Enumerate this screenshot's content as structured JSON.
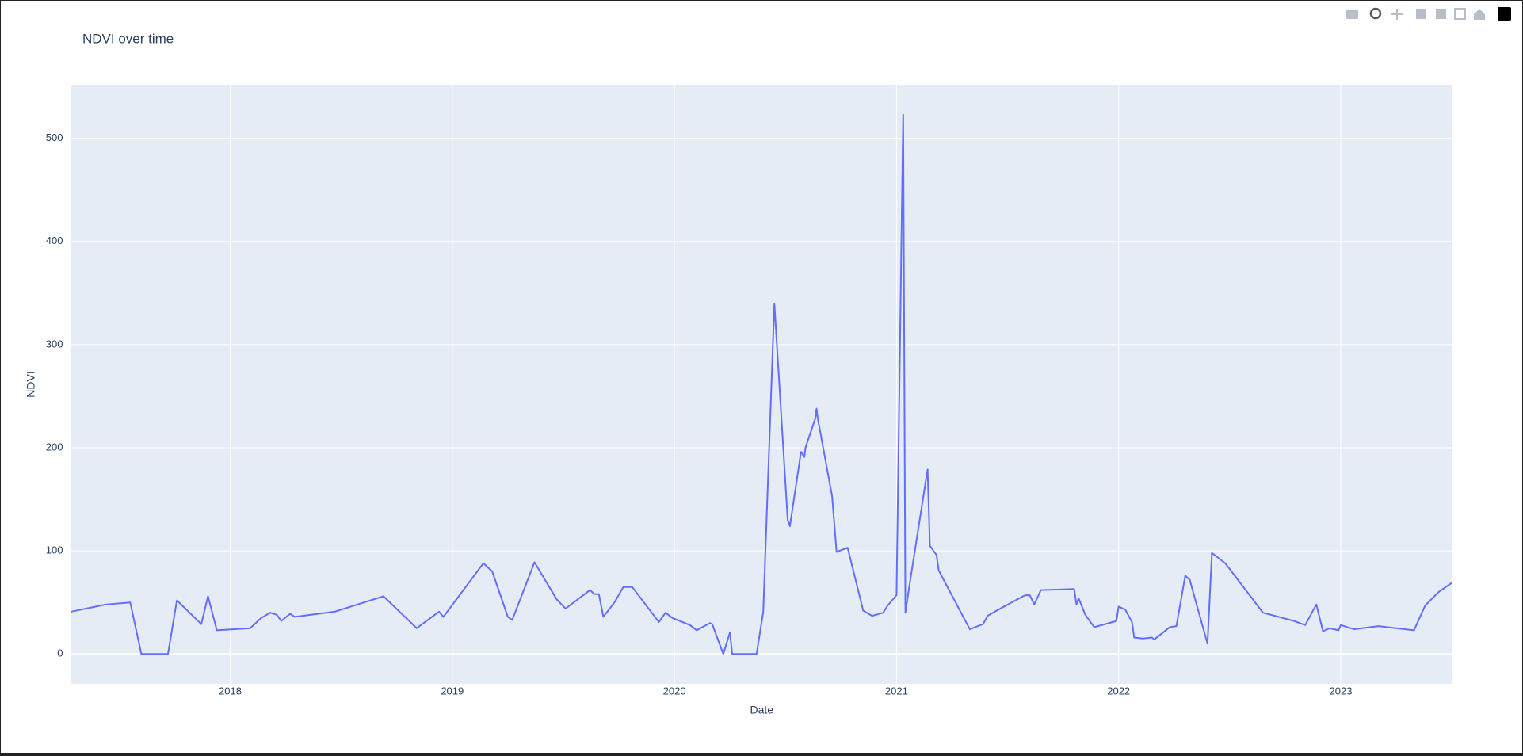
{
  "chart_data": {
    "type": "line",
    "title": "NDVI over time",
    "x_label": "Date",
    "y_label": "NDVI",
    "x": [
      2017.283,
      2017.44,
      2017.55,
      2017.6,
      2017.72,
      2017.76,
      2017.87,
      2017.9,
      2017.94,
      2018.09,
      2018.14,
      2018.18,
      2018.21,
      2018.23,
      2018.27,
      2018.29,
      2018.47,
      2018.69,
      2018.84,
      2018.94,
      2018.96,
      2019.14,
      2019.18,
      2019.25,
      2019.27,
      2019.37,
      2019.47,
      2019.51,
      2019.62,
      2019.64,
      2019.66,
      2019.68,
      2019.73,
      2019.77,
      2019.81,
      2019.93,
      2019.96,
      2019.99,
      2020.07,
      2020.1,
      2020.16,
      2020.17,
      2020.22,
      2020.25,
      2020.26,
      2020.37,
      2020.4,
      2020.45,
      2020.51,
      2020.52,
      2020.57,
      2020.585,
      2020.59,
      2020.635,
      2020.64,
      2020.645,
      2020.71,
      2020.73,
      2020.78,
      2020.85,
      2020.89,
      2020.94,
      2020.96,
      2021.0,
      2021.03,
      2021.04,
      2021.06,
      2021.14,
      2021.15,
      2021.18,
      2021.19,
      2021.33,
      2021.39,
      2021.41,
      2021.45,
      2021.57,
      2021.58,
      2021.6,
      2021.62,
      2021.65,
      2021.8,
      2021.81,
      2021.82,
      2021.85,
      2021.89,
      2021.99,
      2022.0,
      2022.03,
      2022.06,
      2022.07,
      2022.11,
      2022.15,
      2022.16,
      2022.23,
      2022.26,
      2022.3,
      2022.32,
      2022.4,
      2022.42,
      2022.48,
      2022.65,
      2022.79,
      2022.84,
      2022.89,
      2022.92,
      2022.95,
      2022.99,
      2023.0,
      2023.06,
      2023.17,
      2023.33,
      2023.38,
      2023.44,
      2023.5
    ],
    "values": [
      41,
      48,
      50,
      0,
      0,
      52,
      29,
      56,
      23,
      25,
      35,
      40,
      38,
      32,
      39,
      36,
      41,
      56,
      25,
      41,
      36,
      88,
      80,
      36,
      33,
      89,
      53,
      44,
      62,
      58,
      58,
      36,
      50,
      65,
      65,
      31,
      40,
      35,
      28,
      23,
      30,
      29,
      0,
      21,
      0,
      0,
      41,
      340,
      130,
      124,
      196,
      191,
      200,
      229,
      238,
      229,
      153,
      99,
      103,
      42,
      37,
      40,
      47,
      57,
      523,
      40,
      69,
      179,
      105,
      96,
      81,
      24,
      29,
      37,
      42,
      56,
      57,
      57,
      48,
      62,
      63,
      48,
      54,
      38,
      26,
      32,
      46,
      43,
      31,
      16,
      15,
      16,
      14,
      26,
      27,
      76,
      72,
      10,
      98,
      88,
      40,
      32,
      28,
      48,
      22,
      25,
      23,
      28,
      24,
      27,
      23,
      47,
      60,
      69
    ],
    "color": "#636efa",
    "xlim": [
      2017.283,
      2023.503
    ],
    "xticks": [
      2018,
      2019,
      2020,
      2021,
      2022,
      2023
    ],
    "ylim": [
      -29,
      552
    ],
    "yticks": [
      0,
      100,
      200,
      300,
      400,
      500
    ],
    "grid": true
  }
}
